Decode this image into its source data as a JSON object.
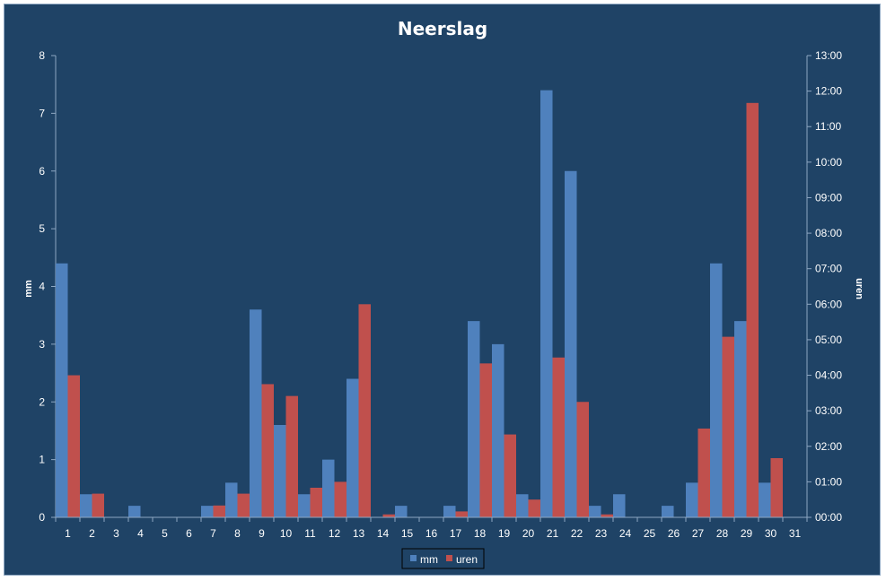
{
  "chart_data": {
    "type": "bar",
    "title": "Neerslag",
    "categories": [
      "1",
      "2",
      "3",
      "4",
      "5",
      "6",
      "7",
      "8",
      "9",
      "10",
      "11",
      "12",
      "13",
      "14",
      "15",
      "16",
      "17",
      "18",
      "19",
      "20",
      "21",
      "22",
      "23",
      "24",
      "25",
      "26",
      "27",
      "28",
      "29",
      "30",
      "31"
    ],
    "series": [
      {
        "name": "mm",
        "axis": "left",
        "color": "#4f81bd",
        "values": [
          4.4,
          0.4,
          0,
          0.2,
          0,
          0,
          0.2,
          0.6,
          3.6,
          1.6,
          0.4,
          1.0,
          2.4,
          0,
          0.2,
          0,
          0.2,
          3.4,
          3.0,
          0.4,
          7.4,
          6.0,
          0.2,
          0.4,
          0,
          0.2,
          0.6,
          4.4,
          3.4,
          0.6,
          0
        ]
      },
      {
        "name": "uren",
        "axis": "right",
        "color": "#c0504d",
        "values": [
          "04:00",
          "00:40",
          "00:00",
          "00:00",
          "00:00",
          "00:00",
          "00:20",
          "00:40",
          "03:45",
          "03:25",
          "00:50",
          "01:00",
          "06:00",
          "00:05",
          "00:00",
          "00:00",
          "00:10",
          "04:20",
          "02:20",
          "00:30",
          "04:30",
          "03:15",
          "00:05",
          "00:00",
          "00:00",
          "00:00",
          "02:30",
          "05:05",
          "11:40",
          "01:40",
          "00:00"
        ]
      }
    ],
    "y_left": {
      "label": "mm",
      "range": [
        0,
        8
      ],
      "ticks": [
        "0",
        "1",
        "2",
        "3",
        "4",
        "5",
        "6",
        "7",
        "8"
      ]
    },
    "y_right": {
      "label": "uren",
      "range": [
        "00:00",
        "13:00"
      ],
      "ticks": [
        "00:00",
        "01:00",
        "02:00",
        "03:00",
        "04:00",
        "05:00",
        "06:00",
        "07:00",
        "08:00",
        "09:00",
        "10:00",
        "11:00",
        "12:00",
        "13:00"
      ]
    },
    "grid": false,
    "legend": {
      "position": "bottom",
      "entries": [
        "mm",
        "uren"
      ]
    }
  },
  "colors": {
    "background": "#1f4366",
    "text": "#ffffff",
    "axis": "#8ea7c2"
  }
}
